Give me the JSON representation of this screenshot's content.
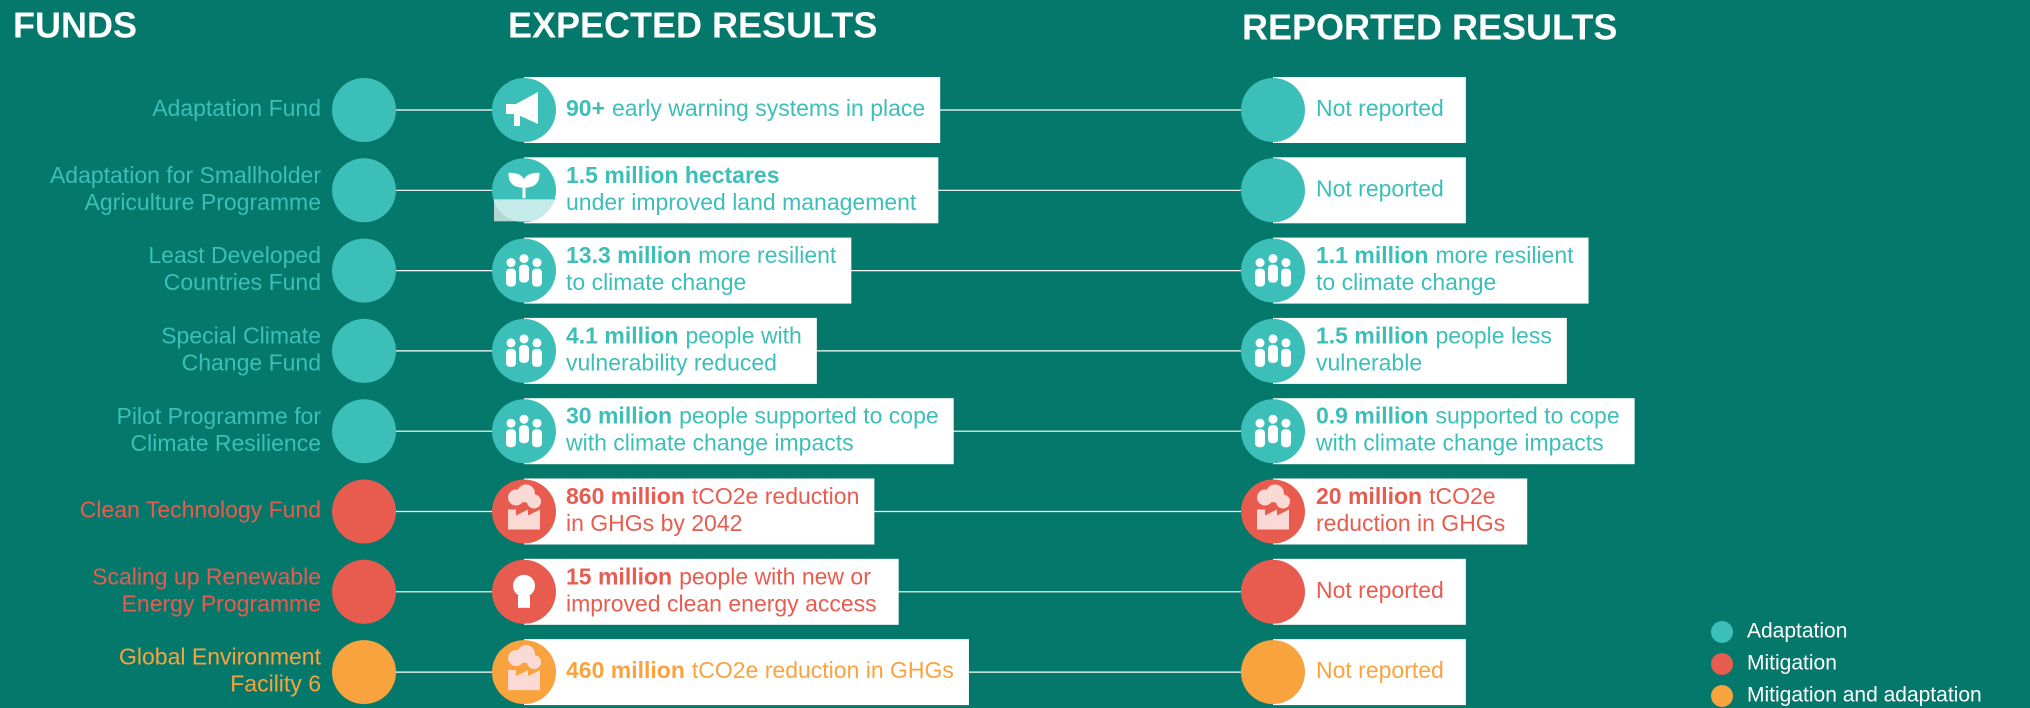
{
  "headers": {
    "funds": "FUNDS",
    "expected": "EXPECTED RESULTS",
    "reported": "REPORTED RESULTS"
  },
  "rows": [
    {
      "name": [
        "Adaptation Fund"
      ],
      "color": "#3cbfb8",
      "expected": [
        [
          {
            "bold": "90+"
          },
          "early warning systems in place"
        ]
      ],
      "reported": [
        [
          "Not reported"
        ]
      ]
    },
    {
      "name": [
        "Adaptation for Smallholder",
        "Agriculture Programme"
      ],
      "color": "#3cbfb8",
      "expected": [
        [
          {
            "bold": "1.5 million hectares"
          }
        ],
        [
          "under improved land management"
        ]
      ],
      "reported": [
        [
          "Not reported"
        ]
      ]
    },
    {
      "name": [
        "Least Developed",
        "Countries Fund"
      ],
      "color": "#3cbfb8",
      "expected": [
        [
          {
            "bold": "13.3 million"
          },
          "more resilient"
        ],
        [
          "to climate change"
        ]
      ],
      "reported": [
        [
          {
            "bold": "1.1 million"
          },
          "more resilient"
        ],
        [
          "to climate change"
        ]
      ]
    },
    {
      "name": [
        "Special Climate",
        "Change Fund"
      ],
      "color": "#3cbfb8",
      "expected": [
        [
          {
            "bold": "4.1 million"
          },
          "people with"
        ],
        [
          "vulnerability reduced"
        ]
      ],
      "reported": [
        [
          {
            "bold": "1.5 million"
          },
          "people less"
        ],
        [
          "vulnerable"
        ]
      ]
    },
    {
      "name": [
        "Pilot Programme for",
        "Climate Resilience"
      ],
      "color": "#3cbfb8",
      "expected": [
        [
          {
            "bold": "30 million"
          },
          "people supported to cope"
        ],
        [
          "with climate change impacts"
        ]
      ],
      "reported": [
        [
          {
            "bold": "0.9 million"
          },
          "supported to cope"
        ],
        [
          "with climate change impacts"
        ]
      ]
    },
    {
      "name": [
        "Clean Technology Fund"
      ],
      "color": "#e85c50",
      "expected": [
        [
          {
            "bold": "860 million"
          },
          "tCO2e reduction"
        ],
        [
          "in GHGs by 2042"
        ]
      ],
      "reported": [
        [
          {
            "bold": "20 million"
          },
          "tCO2e"
        ],
        [
          "reduction in GHGs"
        ]
      ]
    },
    {
      "name": [
        "Scaling up Renewable",
        "Energy Programme"
      ],
      "color": "#e85c50",
      "expected": [
        [
          {
            "bold": "15 million"
          },
          "people with new or"
        ],
        [
          "improved clean energy access"
        ]
      ],
      "reported": [
        [
          "Not reported"
        ]
      ]
    },
    {
      "name": [
        "Global Environment",
        "Facility 6"
      ],
      "color": "#f9a33f",
      "expected": [
        [
          {
            "bold": "460 million"
          },
          "tCO2e reduction in GHGs"
        ]
      ],
      "reported": [
        [
          "Not reported"
        ]
      ]
    }
  ],
  "legend": [
    {
      "name": "Adaptation",
      "color": "#3cbfb8"
    },
    {
      "name": "Mitigation",
      "color": "#e85c50"
    },
    {
      "name": "Mitigation and adaptation",
      "color": "#f9a33f"
    }
  ]
}
